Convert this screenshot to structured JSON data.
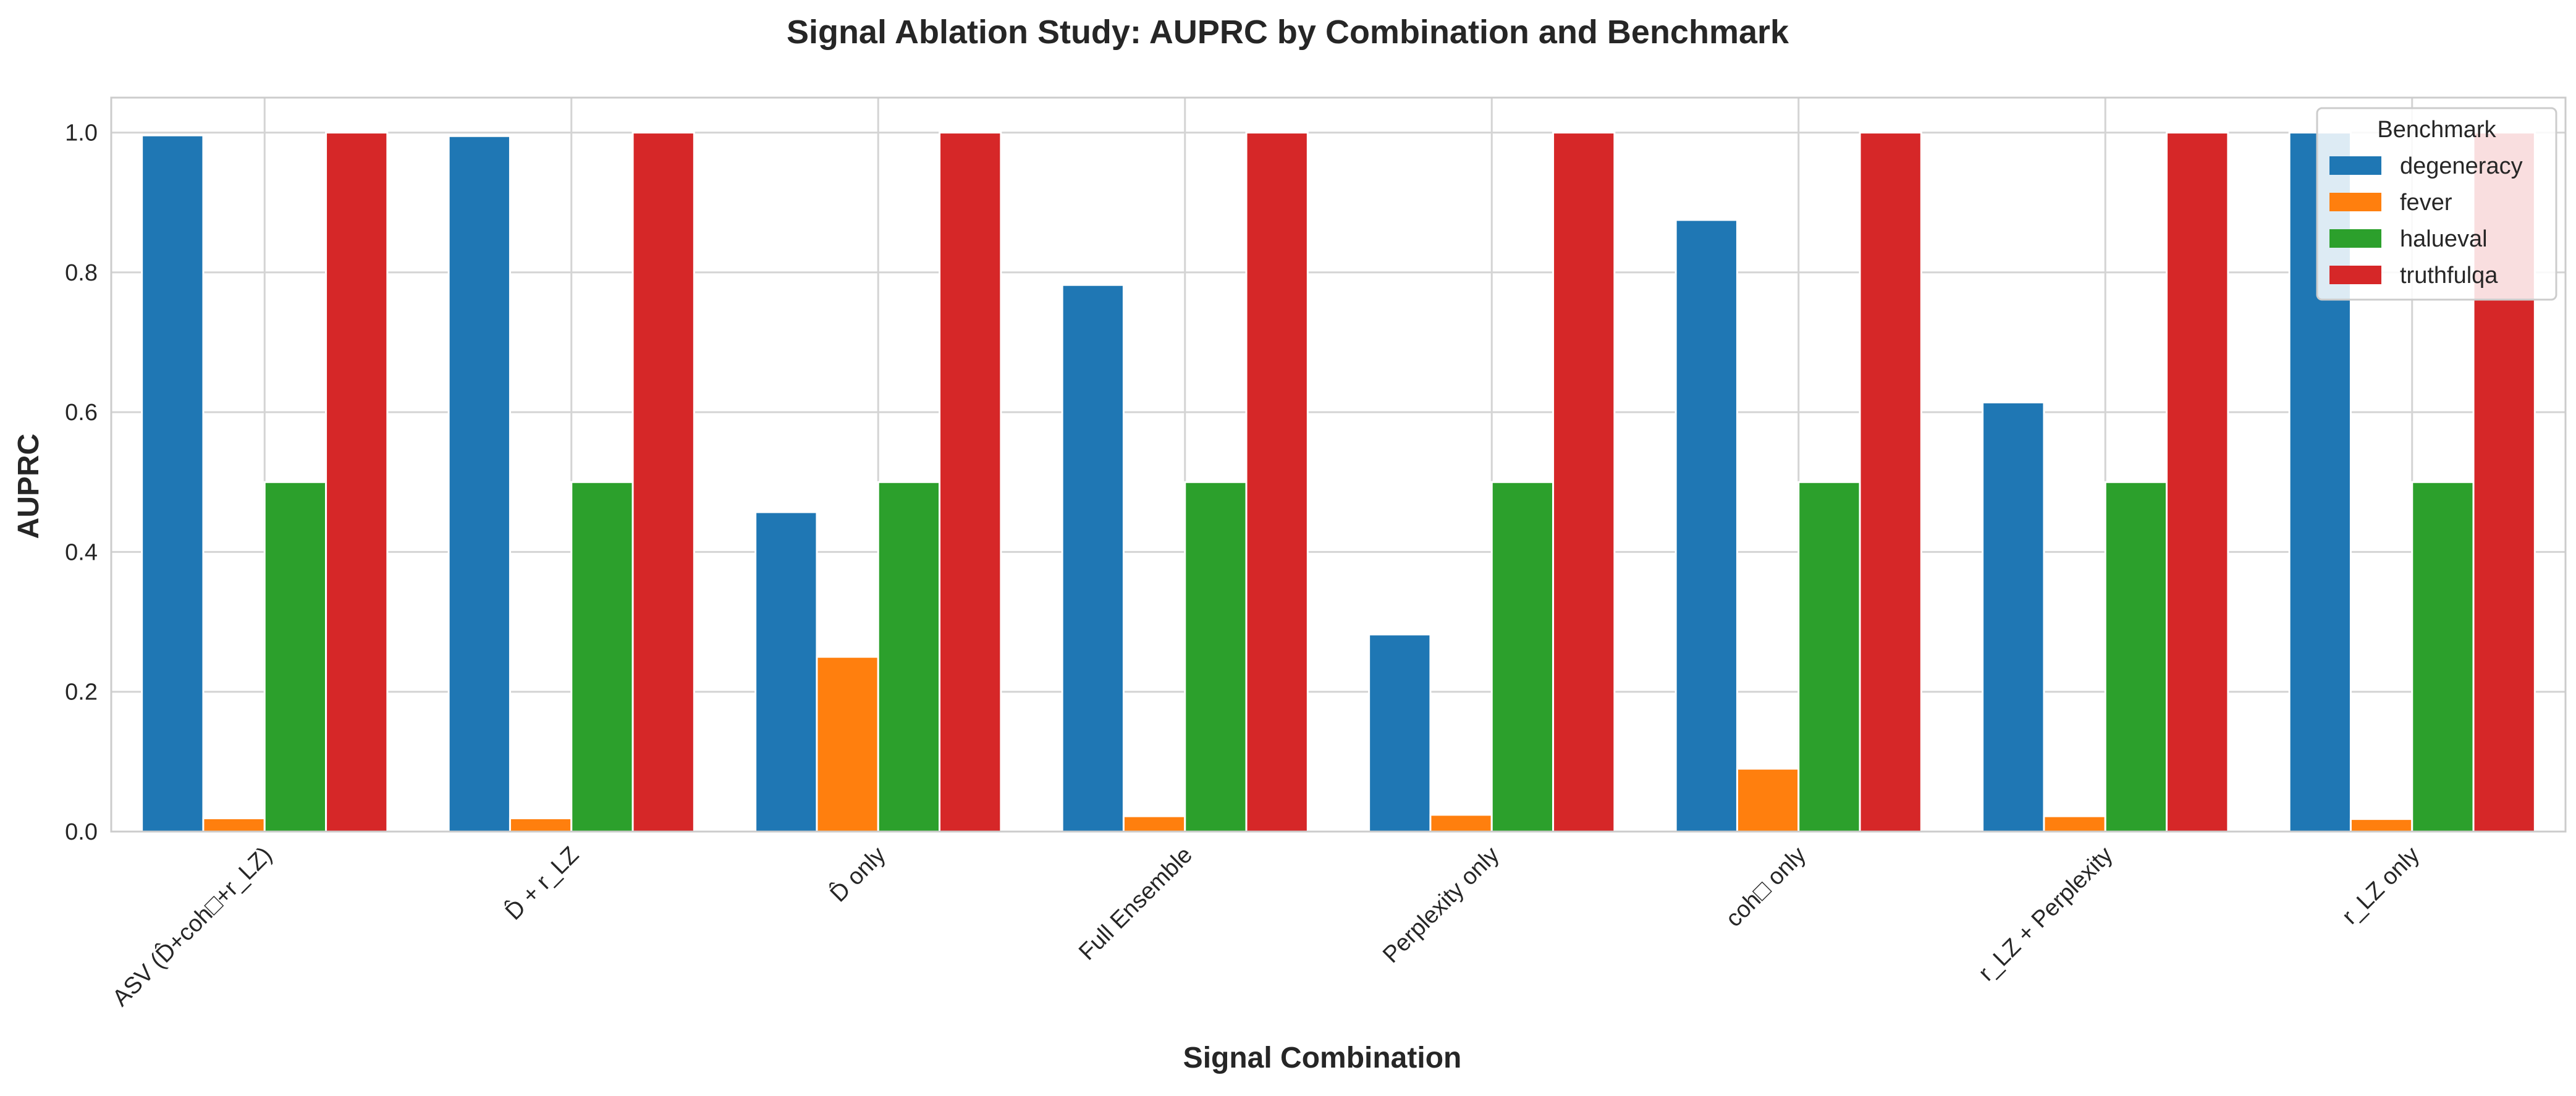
{
  "chart_data": {
    "type": "bar",
    "title": "Signal Ablation Study: AUPRC by Combination and Benchmark",
    "xlabel": "Signal Combination",
    "ylabel": "AUPRC",
    "ylim": [
      0,
      1.05
    ],
    "yticks": [
      "0.0",
      "0.2",
      "0.4",
      "0.6",
      "0.8",
      "1.0"
    ],
    "grid": true,
    "categories": [
      "ASV (D̂+coh□+r_LZ)",
      "D̂ + r_LZ",
      "D̂ only",
      "Full Ensemble",
      "Perplexity only",
      "coh□ only",
      "r_LZ + Perplexity",
      "r_LZ only"
    ],
    "series": [
      {
        "name": "degeneracy",
        "color": "#1f77b4",
        "values": [
          0.996,
          0.995,
          0.457,
          0.782,
          0.282,
          0.875,
          0.614,
          1.0
        ]
      },
      {
        "name": "fever",
        "color": "#ff7f0e",
        "values": [
          0.019,
          0.019,
          0.25,
          0.022,
          0.024,
          0.09,
          0.022,
          0.018
        ]
      },
      {
        "name": "halueval",
        "color": "#2ca02c",
        "values": [
          0.5,
          0.5,
          0.5,
          0.5,
          0.5,
          0.5,
          0.5,
          0.5
        ]
      },
      {
        "name": "truthfulqa",
        "color": "#d62728",
        "values": [
          1.0,
          1.0,
          1.0,
          1.0,
          1.0,
          1.0,
          1.0,
          1.0
        ]
      }
    ],
    "legend": {
      "title": "Benchmark",
      "position": "top-right"
    }
  }
}
